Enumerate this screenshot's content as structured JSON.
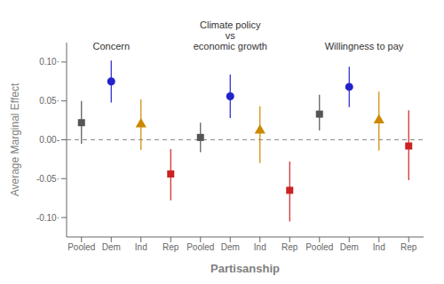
{
  "chart_data": {
    "type": "scatter",
    "xlabel": "Partisanship",
    "ylabel": "Average Marginal Effect",
    "categories": [
      "Pooled",
      "Dem",
      "Ind",
      "Rep",
      "Pooled",
      "Dem",
      "Ind",
      "Rep",
      "Pooled",
      "Dem",
      "Ind",
      "Rep"
    ],
    "series": [
      {
        "color": "#555555",
        "marker": "square",
        "values": [
          0.022,
          null,
          null,
          null,
          0.003,
          null,
          null,
          null,
          0.033,
          null,
          null,
          null
        ],
        "ci_lower": [
          -0.005,
          null,
          null,
          null,
          -0.016,
          null,
          null,
          null,
          0.012,
          null,
          null,
          null
        ],
        "ci_upper": [
          0.05,
          null,
          null,
          null,
          0.022,
          null,
          null,
          null,
          0.058,
          null,
          null,
          null
        ]
      },
      {
        "color": "#2222cc",
        "marker": "circle",
        "values": [
          null,
          0.075,
          null,
          null,
          null,
          0.056,
          null,
          null,
          null,
          0.068,
          null,
          null
        ],
        "ci_lower": [
          null,
          0.048,
          null,
          null,
          null,
          0.028,
          null,
          null,
          null,
          0.042,
          null,
          null
        ],
        "ci_upper": [
          null,
          0.102,
          null,
          null,
          null,
          0.084,
          null,
          null,
          null,
          0.094,
          null,
          null
        ]
      },
      {
        "color": "#cc8800",
        "marker": "triangle",
        "values": [
          null,
          null,
          0.02,
          null,
          null,
          null,
          0.012,
          null,
          null,
          null,
          0.025,
          null
        ],
        "ci_lower": [
          null,
          null,
          -0.013,
          null,
          null,
          null,
          -0.03,
          null,
          null,
          null,
          -0.014,
          null
        ],
        "ci_upper": [
          null,
          null,
          0.052,
          null,
          null,
          null,
          0.043,
          null,
          null,
          null,
          0.062,
          null
        ]
      },
      {
        "color": "#cc2222",
        "marker": "square",
        "values": [
          null,
          null,
          null,
          -0.044,
          null,
          null,
          null,
          -0.065,
          null,
          null,
          null,
          -0.008
        ],
        "ci_lower": [
          null,
          null,
          null,
          -0.078,
          null,
          null,
          null,
          -0.105,
          null,
          null,
          null,
          -0.052
        ],
        "ci_upper": [
          null,
          null,
          null,
          -0.012,
          null,
          null,
          null,
          -0.028,
          null,
          null,
          null,
          0.038
        ]
      }
    ],
    "ylim": [
      -0.125,
      0.125
    ],
    "yticks": [
      {
        "value": -0.1,
        "label": "-0.10·"
      },
      {
        "value": -0.05,
        "label": "-0.05·"
      },
      {
        "value": 0.0,
        "label": "0.00-"
      },
      {
        "value": 0.05,
        "label": "0.05·"
      },
      {
        "value": 0.1,
        "label": "0.10·"
      }
    ],
    "annotations": [
      {
        "text": "Concern",
        "x": 1.0,
        "y": 0.112
      },
      {
        "text": "Climate policy\nvs\neconomic growth",
        "x": 5.0,
        "y": 0.112
      },
      {
        "text": "Willingness to pay",
        "x": 9.5,
        "y": 0.112
      }
    ],
    "reference_lines": [
      {
        "y": 0,
        "color": "#888888",
        "line_style": "dashed"
      }
    ]
  }
}
